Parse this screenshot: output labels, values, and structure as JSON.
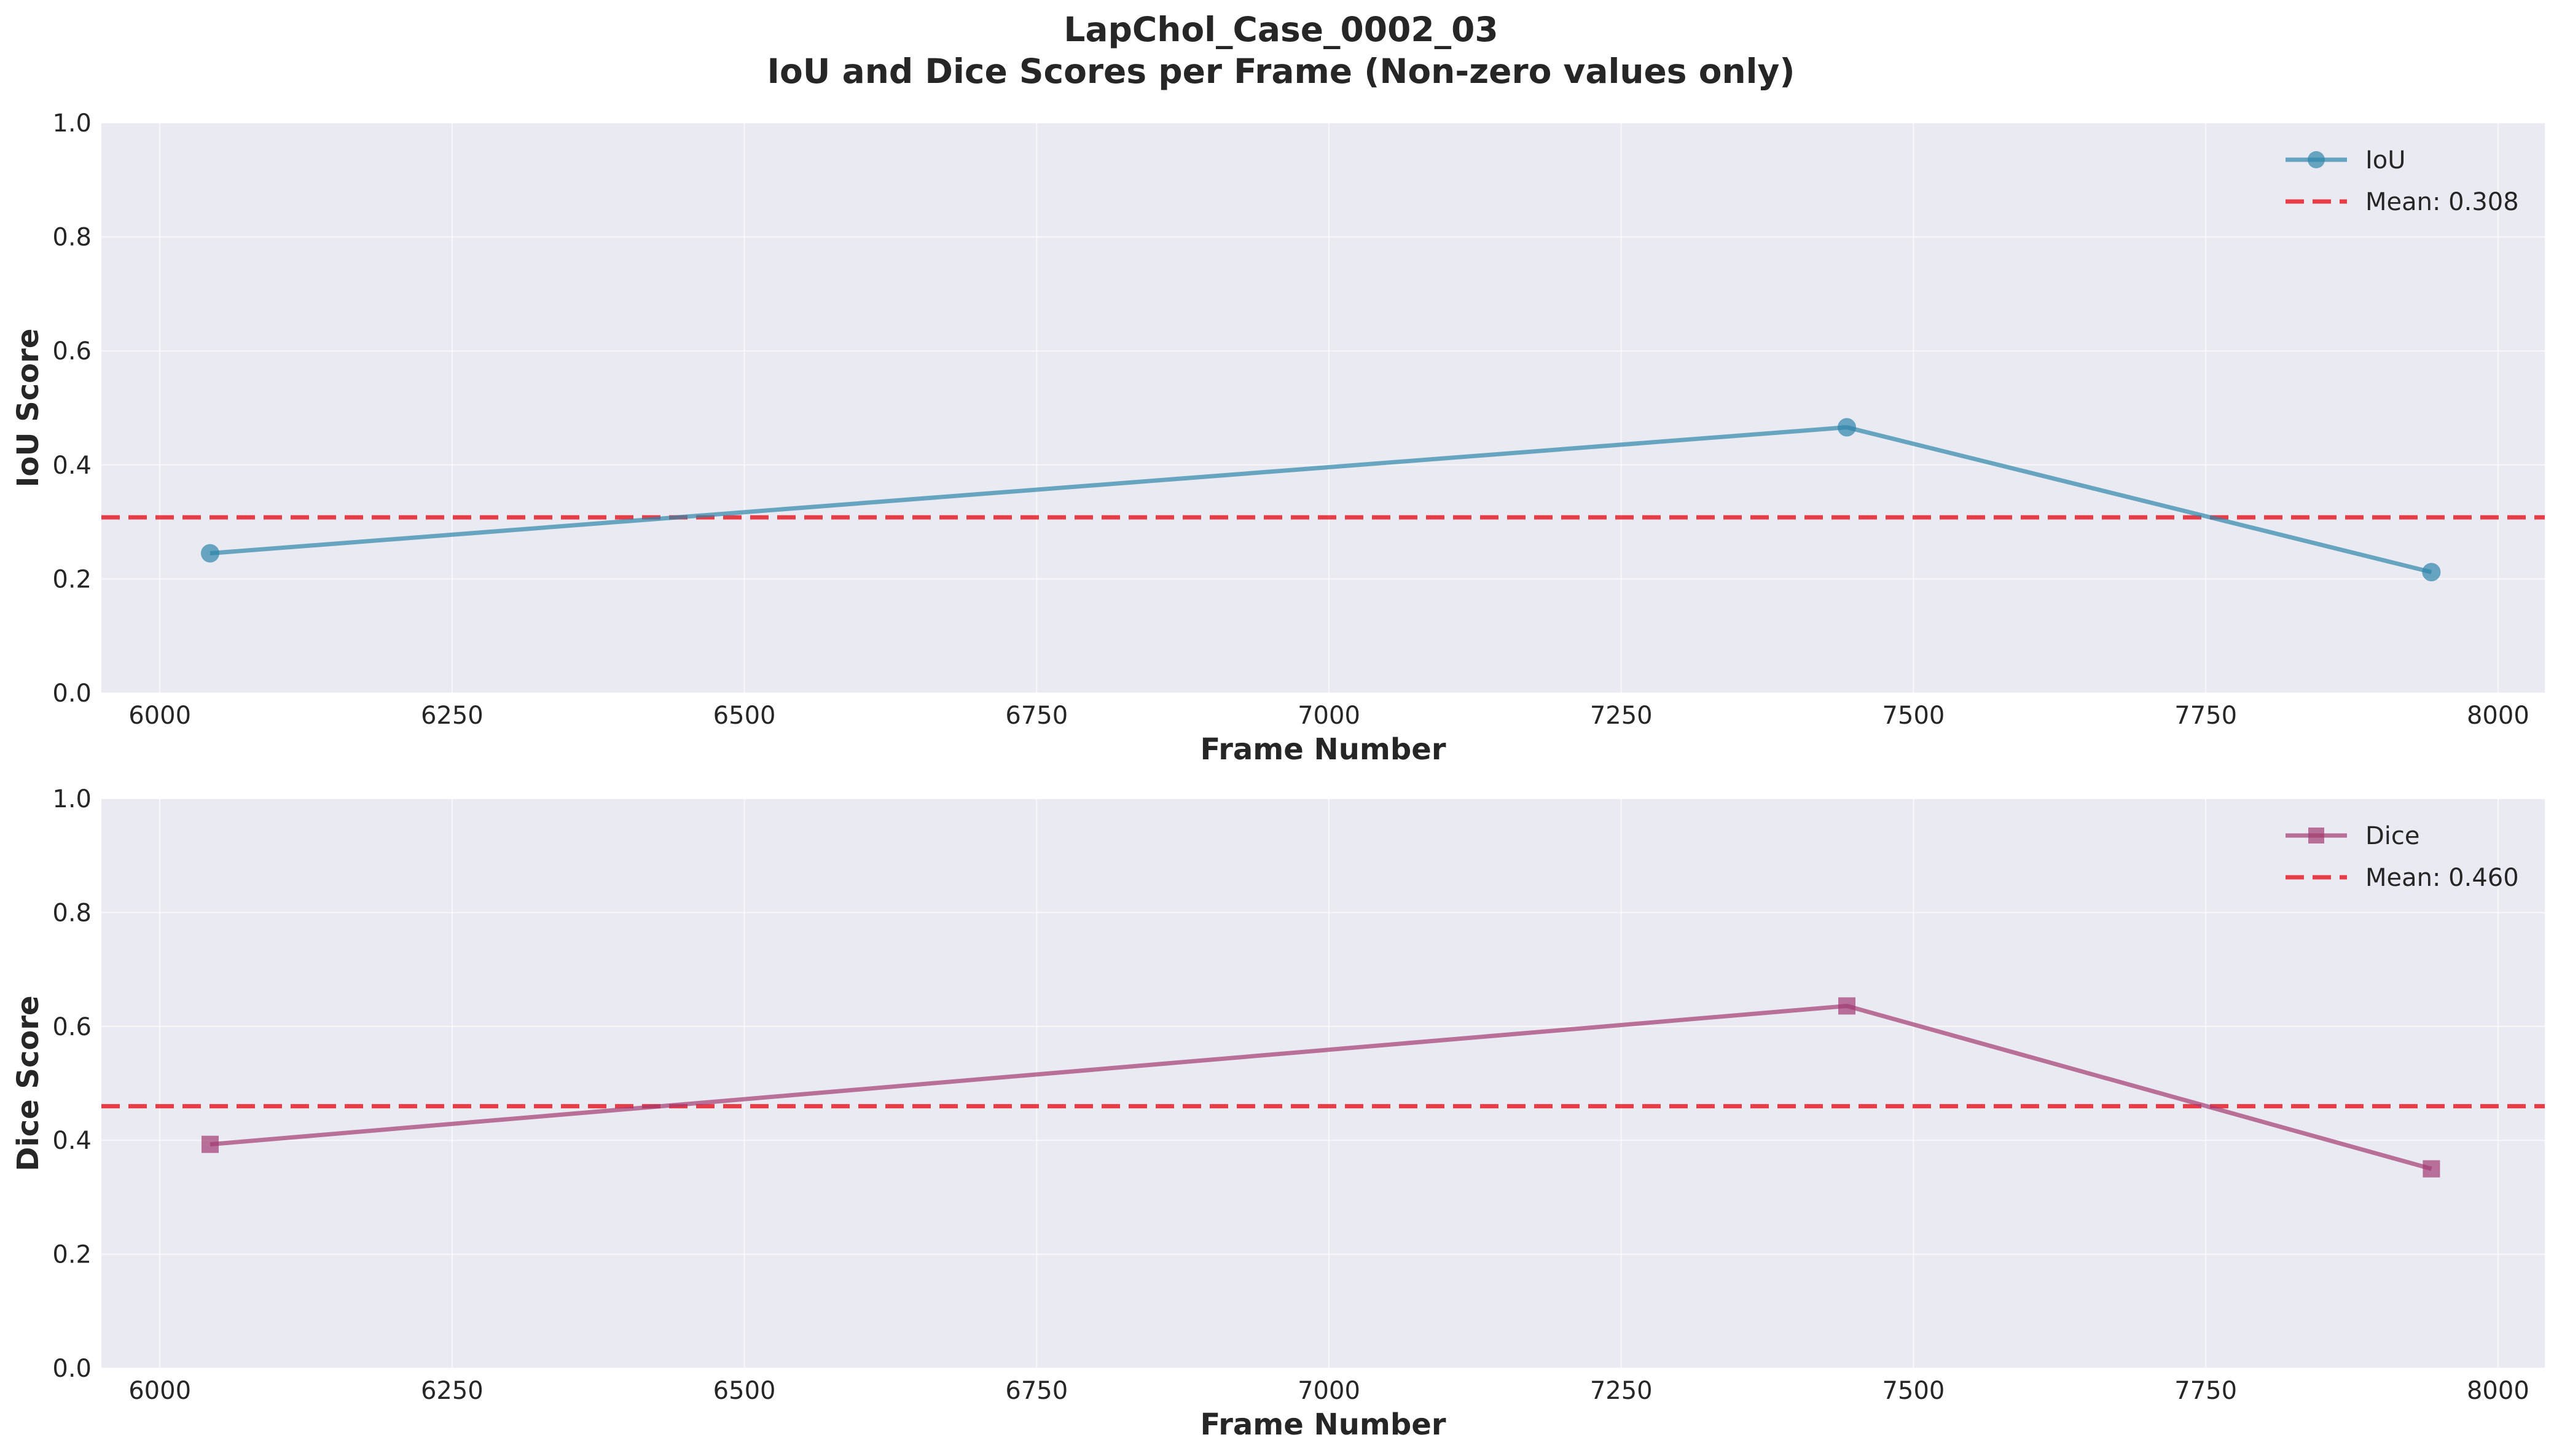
{
  "title": "LapChol_Case_0002_03",
  "subtitle": "IoU and Dice Scores per Frame (Non-zero values only)",
  "colors": {
    "background": "#EAEAF2",
    "grid": "#FFFFFF",
    "iou": "#2E86AB",
    "dice": "#A23B72",
    "mean": "#E8202A"
  },
  "chart_data": [
    {
      "type": "line",
      "xlabel": "Frame Number",
      "ylabel": "IoU Score",
      "xlim": [
        5950,
        8040
      ],
      "ylim": [
        0,
        1.0
      ],
      "xticks": [
        6000,
        6250,
        6500,
        6750,
        7000,
        7250,
        7500,
        7750,
        8000
      ],
      "yticks": [
        0.0,
        0.2,
        0.4,
        0.6,
        0.8,
        1.0
      ],
      "grid": true,
      "legend_position": "top-right",
      "series": [
        {
          "name": "IoU",
          "marker": "circle",
          "color": "#2E86AB",
          "x": [
            6043,
            7443,
            7943
          ],
          "y": [
            0.245,
            0.466,
            0.212
          ]
        }
      ],
      "mean": {
        "label": "Mean: 0.308",
        "value": 0.308
      }
    },
    {
      "type": "line",
      "xlabel": "Frame Number",
      "ylabel": "Dice Score",
      "xlim": [
        5950,
        8040
      ],
      "ylim": [
        0,
        1.0
      ],
      "xticks": [
        6000,
        6250,
        6500,
        6750,
        7000,
        7250,
        7500,
        7750,
        8000
      ],
      "yticks": [
        0.0,
        0.2,
        0.4,
        0.6,
        0.8,
        1.0
      ],
      "grid": true,
      "legend_position": "top-right",
      "series": [
        {
          "name": "Dice",
          "marker": "square",
          "color": "#A23B72",
          "x": [
            6043,
            7443,
            7943
          ],
          "y": [
            0.393,
            0.636,
            0.35
          ]
        }
      ],
      "mean": {
        "label": "Mean: 0.460",
        "value": 0.46
      }
    }
  ]
}
